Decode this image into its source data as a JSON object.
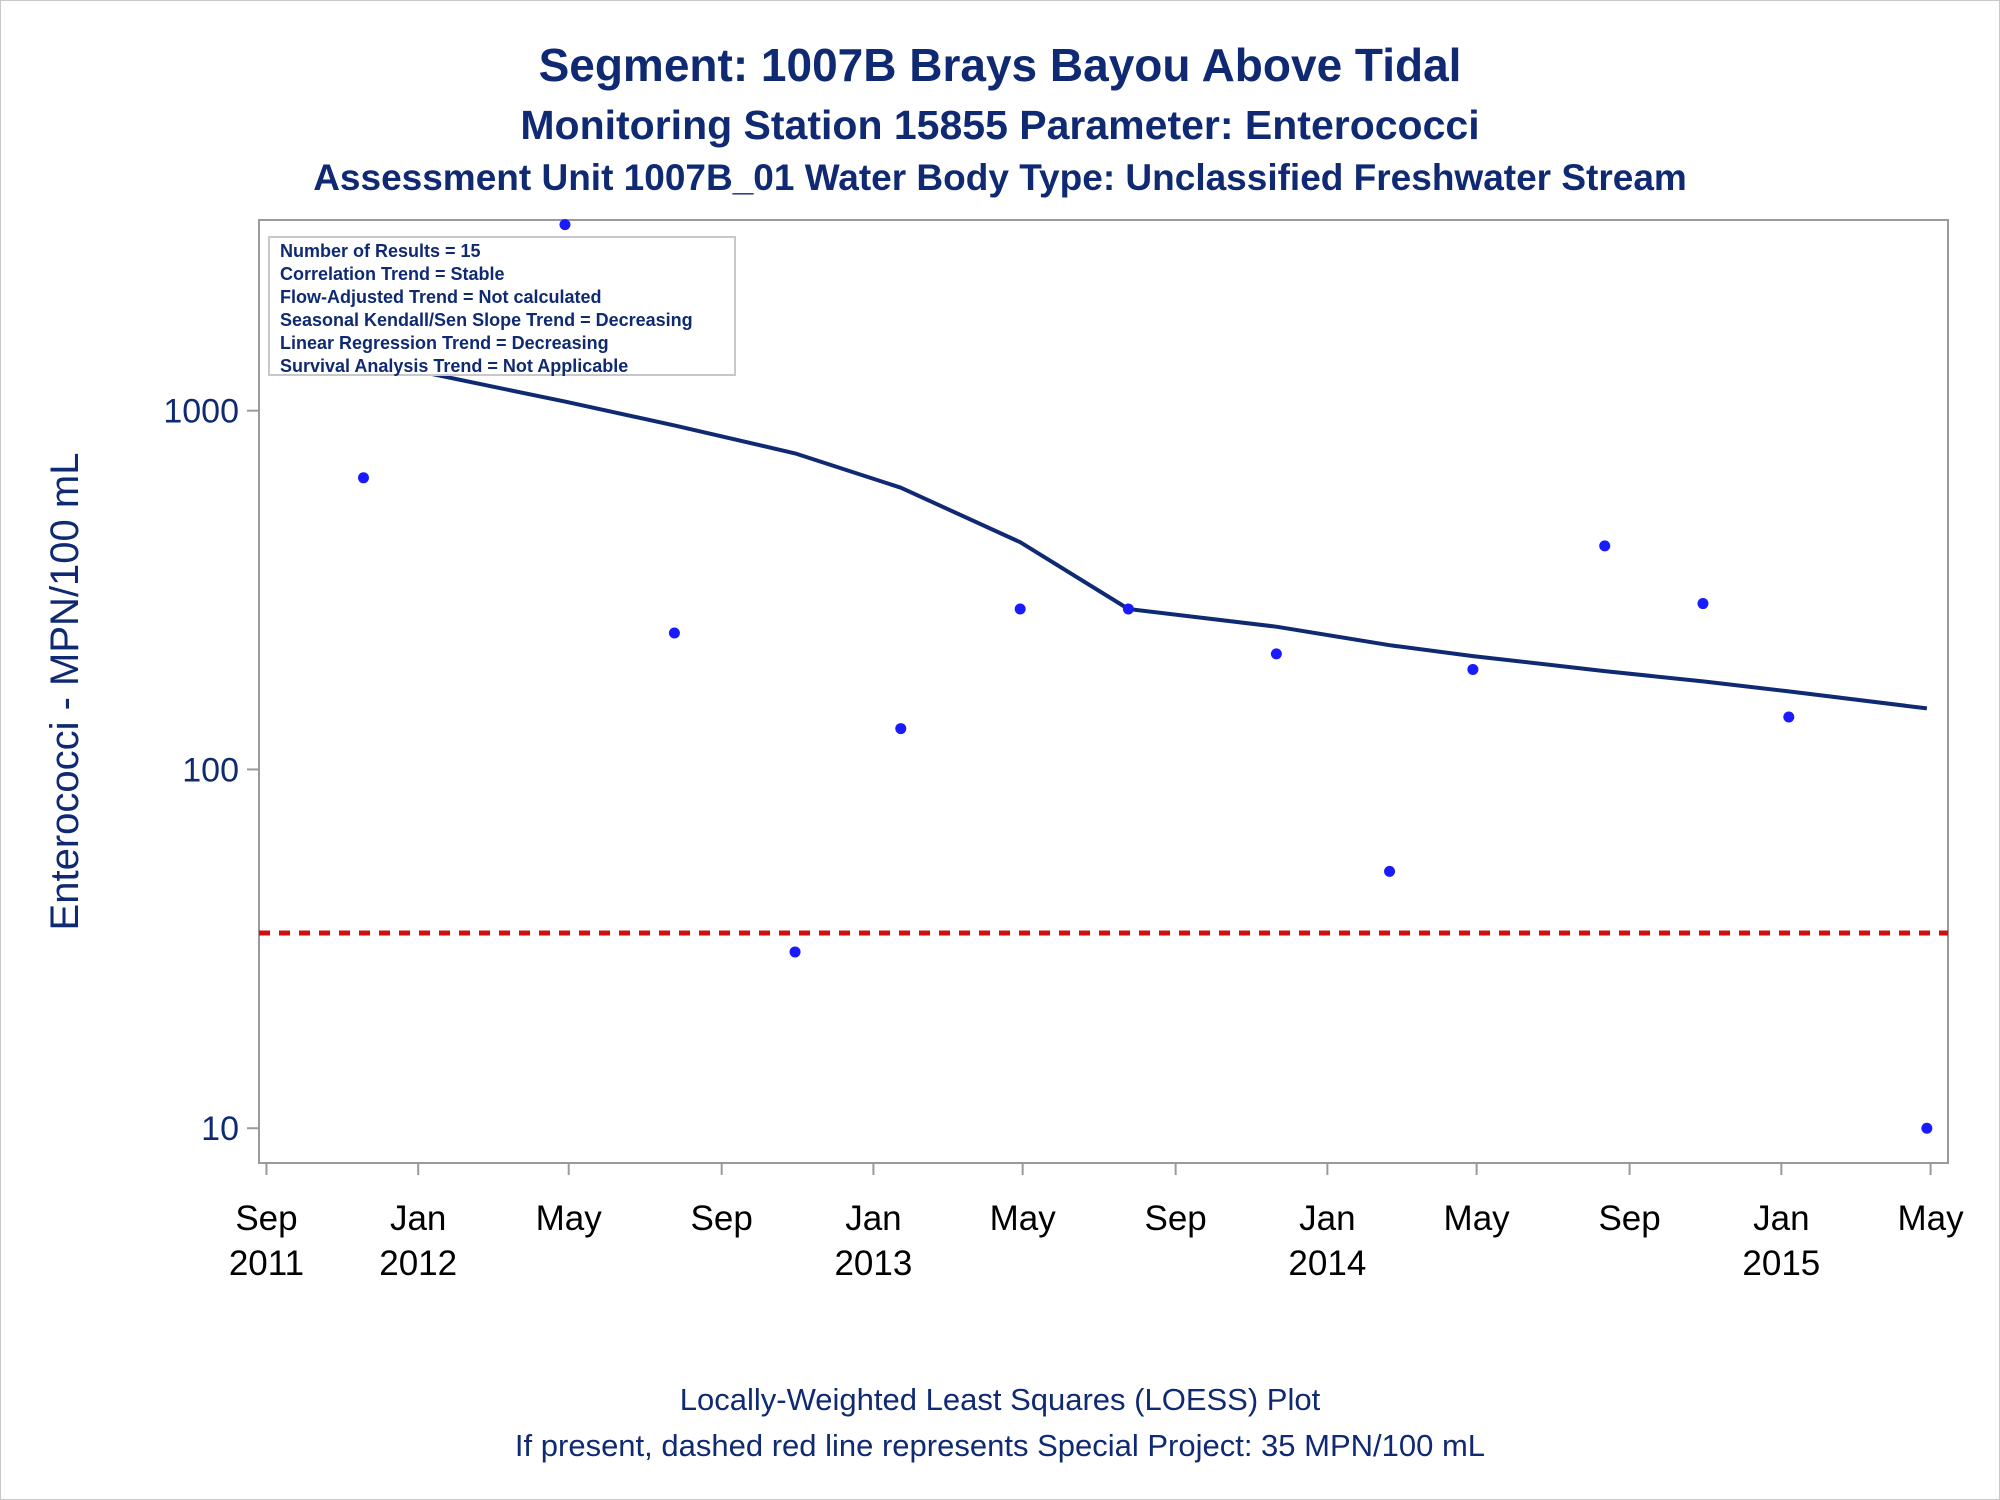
{
  "header": {
    "title": "Segment: 1007B  Brays Bayou Above Tidal",
    "subtitle": "Monitoring Station 15855 Parameter: Enterococci",
    "subtitle2": "Assessment Unit 1007B_01   Water Body Type: Unclassified Freshwater Stream"
  },
  "legend": {
    "lines": [
      "Number of Results = 15",
      "Correlation Trend = Stable",
      "Flow-Adjusted Trend = Not calculated",
      "Seasonal Kendall/Sen Slope Trend = Decreasing",
      "Linear Regression Trend = Decreasing",
      "Survival Analysis Trend = Not Applicable"
    ]
  },
  "footer": {
    "line1": "Locally-Weighted Least Squares (LOESS) Plot",
    "line2": "If present, dashed red line represents Special Project: 35 MPN/100 mL"
  },
  "colors": {
    "text": "#0f2a73",
    "points": "#1a1aff",
    "loess": "#0f2a73",
    "reference": "#d01010",
    "axis": "#9a9a9a"
  },
  "chart_data": {
    "type": "scatter",
    "title": "Segment: 1007B  Brays Bayou Above Tidal",
    "ylabel": "Enterococci - MPN/100 mL",
    "xlabel": "",
    "y_scale": "log",
    "ylim": [
      8,
      3400
    ],
    "xlim": [
      "2011-08-26",
      "2015-05-15"
    ],
    "y_ticks": [
      {
        "value": 10,
        "label": "10"
      },
      {
        "value": 100,
        "label": "100"
      },
      {
        "value": 1000,
        "label": "1000"
      }
    ],
    "x_ticks": [
      {
        "date": "2011-09-01",
        "month": "Sep",
        "year": "2011"
      },
      {
        "date": "2012-01-01",
        "month": "Jan",
        "year": "2012"
      },
      {
        "date": "2012-05-01",
        "month": "May",
        "year": ""
      },
      {
        "date": "2012-09-01",
        "month": "Sep",
        "year": ""
      },
      {
        "date": "2013-01-01",
        "month": "Jan",
        "year": "2013"
      },
      {
        "date": "2013-05-01",
        "month": "May",
        "year": ""
      },
      {
        "date": "2013-09-01",
        "month": "Sep",
        "year": ""
      },
      {
        "date": "2014-01-01",
        "month": "Jan",
        "year": "2014"
      },
      {
        "date": "2014-05-01",
        "month": "May",
        "year": ""
      },
      {
        "date": "2014-09-01",
        "month": "Sep",
        "year": ""
      },
      {
        "date": "2015-01-01",
        "month": "Jan",
        "year": "2015"
      },
      {
        "date": "2015-05-01",
        "month": "May",
        "year": ""
      }
    ],
    "points": [
      {
        "date": "2011-11-18",
        "value": 650
      },
      {
        "date": "2012-01-05",
        "value": 1300
      },
      {
        "date": "2012-04-28",
        "value": 3300
      },
      {
        "date": "2012-07-25",
        "value": 240
      },
      {
        "date": "2012-10-30",
        "value": 31
      },
      {
        "date": "2013-01-23",
        "value": 130
      },
      {
        "date": "2013-04-29",
        "value": 280
      },
      {
        "date": "2013-07-25",
        "value": 280
      },
      {
        "date": "2013-11-21",
        "value": 210
      },
      {
        "date": "2014-02-20",
        "value": 52
      },
      {
        "date": "2014-04-28",
        "value": 190
      },
      {
        "date": "2014-08-12",
        "value": 420
      },
      {
        "date": "2014-10-30",
        "value": 290
      },
      {
        "date": "2015-01-07",
        "value": 140
      },
      {
        "date": "2015-04-28",
        "value": 10
      }
    ],
    "loess_line": [
      {
        "date": "2011-11-18",
        "value": 1350
      },
      {
        "date": "2012-01-05",
        "value": 1280
      },
      {
        "date": "2012-04-28",
        "value": 1060
      },
      {
        "date": "2012-07-25",
        "value": 910
      },
      {
        "date": "2012-10-30",
        "value": 760
      },
      {
        "date": "2013-01-23",
        "value": 610
      },
      {
        "date": "2013-04-29",
        "value": 430
      },
      {
        "date": "2013-07-25",
        "value": 280
      },
      {
        "date": "2013-11-21",
        "value": 250
      },
      {
        "date": "2014-02-20",
        "value": 222
      },
      {
        "date": "2014-04-28",
        "value": 207
      },
      {
        "date": "2014-08-12",
        "value": 188
      },
      {
        "date": "2014-10-30",
        "value": 176
      },
      {
        "date": "2015-01-07",
        "value": 165
      },
      {
        "date": "2015-04-28",
        "value": 148
      }
    ],
    "reference_line": {
      "value": 35,
      "style": "dashed"
    },
    "grid": false,
    "legend_placement": "top-left"
  }
}
